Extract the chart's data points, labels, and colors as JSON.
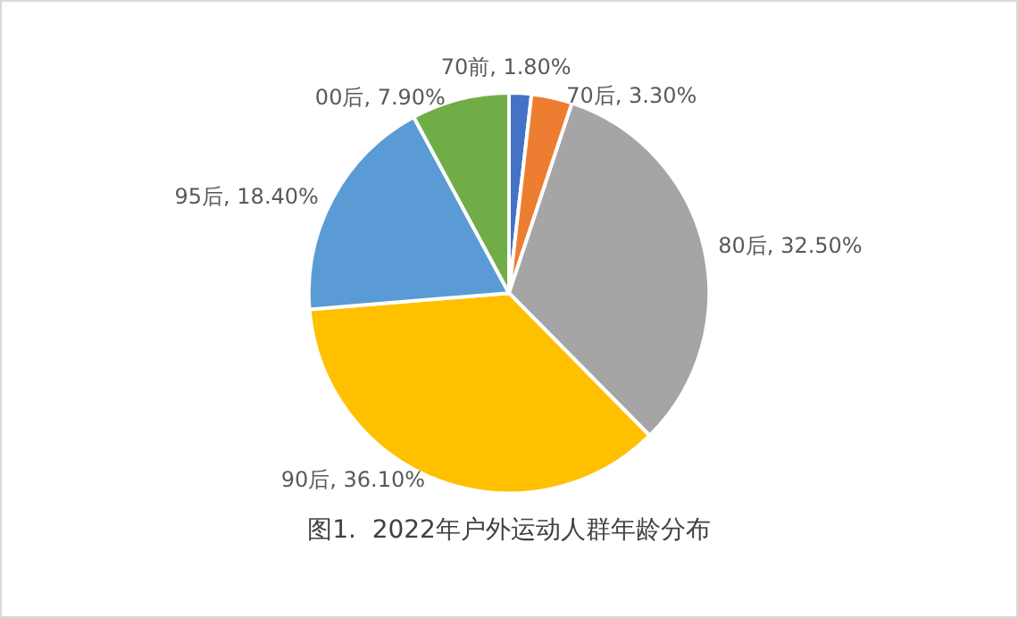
{
  "chart_data": {
    "type": "pie",
    "title": "图1.  2022年户外运动人群年龄分布",
    "categories": [
      "70前",
      "70后",
      "80后",
      "90后",
      "95后",
      "00后"
    ],
    "values": [
      1.8,
      3.3,
      32.5,
      36.1,
      18.4,
      7.9
    ],
    "value_labels": [
      "1.80%",
      "3.30%",
      "32.50%",
      "36.10%",
      "18.40%",
      "7.90%"
    ],
    "colors": [
      "#4472c4",
      "#ed7d31",
      "#a5a5a5",
      "#ffc000",
      "#5b9bd5",
      "#70ad47"
    ],
    "legend": false
  }
}
